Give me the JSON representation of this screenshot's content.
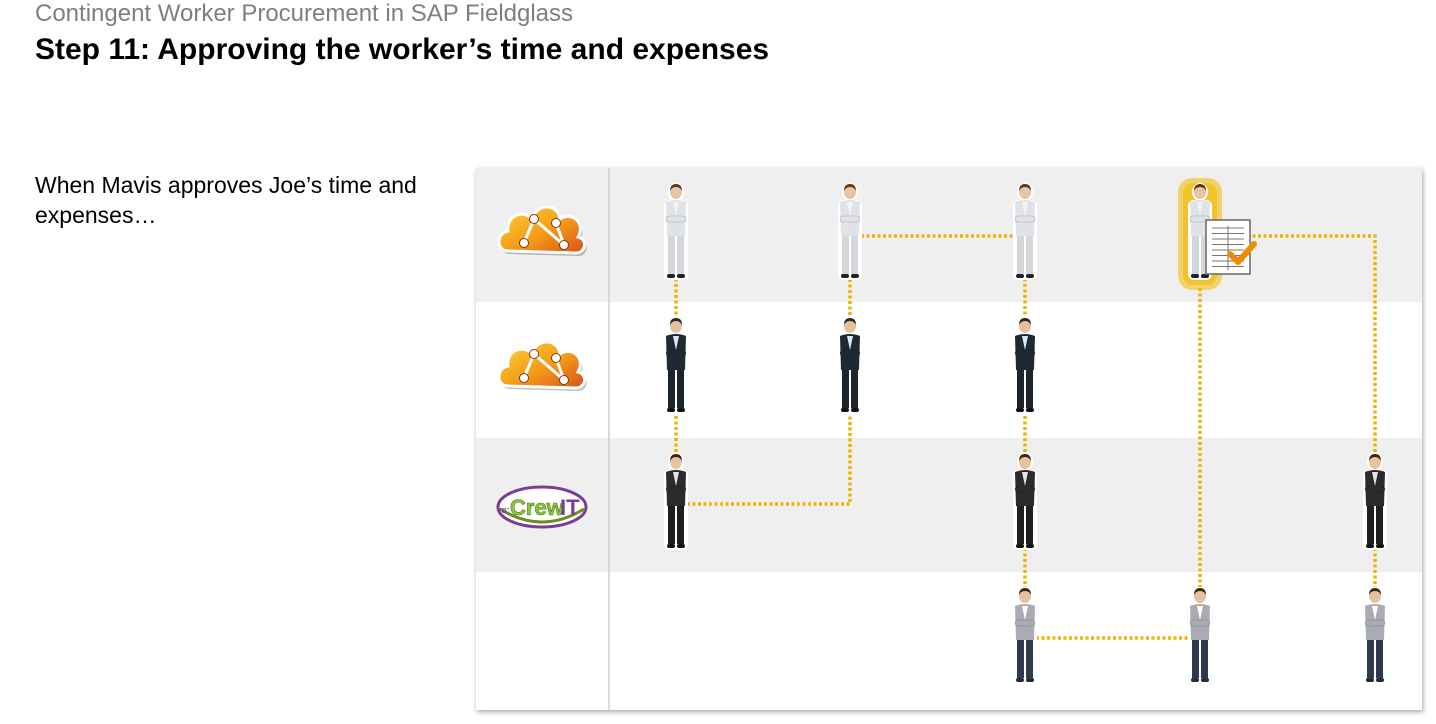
{
  "header": {
    "subtitle": "Contingent Worker Procurement in SAP Fieldglass",
    "title": "Step 11: Approving the worker’s time and expenses"
  },
  "caption": "When Mavis approves Joe’s time and expenses…",
  "diagram": {
    "lanes": [
      {
        "id": "lane-1",
        "logo": "orange-cloud-network-logo",
        "shaded": true
      },
      {
        "id": "lane-2",
        "logo": "orange-cloud-network-logo",
        "shaded": false
      },
      {
        "id": "lane-3",
        "logo": "recrewit-logo",
        "logo_text": "re:CrewIT",
        "shaded": true
      },
      {
        "id": "lane-4",
        "logo": "",
        "shaded": false
      }
    ],
    "people": [
      {
        "lane": 0,
        "col": 0,
        "kind": "woman-light-suit"
      },
      {
        "lane": 0,
        "col": 1,
        "kind": "woman-light-suit"
      },
      {
        "lane": 0,
        "col": 2,
        "kind": "woman-light-suit"
      },
      {
        "lane": 0,
        "col": 3,
        "kind": "woman-light-suit",
        "highlighted": true,
        "badge": "approved-timesheet-icon"
      },
      {
        "lane": 1,
        "col": 0,
        "kind": "man-dark-suit"
      },
      {
        "lane": 1,
        "col": 1,
        "kind": "man-dark-suit"
      },
      {
        "lane": 1,
        "col": 2,
        "kind": "man-dark-suit"
      },
      {
        "lane": 2,
        "col": 0,
        "kind": "woman-dark-suit"
      },
      {
        "lane": 2,
        "col": 2,
        "kind": "woman-dark-suit"
      },
      {
        "lane": 2,
        "col": 4,
        "kind": "woman-dark-suit"
      },
      {
        "lane": 3,
        "col": 2,
        "kind": "man-casual"
      },
      {
        "lane": 3,
        "col": 3,
        "kind": "man-casual"
      },
      {
        "lane": 3,
        "col": 4,
        "kind": "man-casual"
      }
    ],
    "connector_color": "#f0b400",
    "highlight_color": "#f5b800",
    "check_color": "#f08a00"
  }
}
